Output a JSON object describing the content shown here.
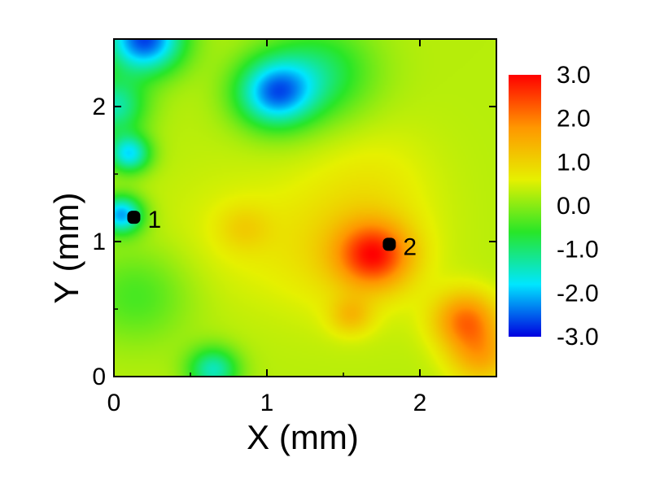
{
  "chart_data": {
    "type": "heatmap",
    "title": "",
    "xlabel": "X (mm)",
    "ylabel": "Y (mm)",
    "xlim": [
      0,
      2.5
    ],
    "ylim": [
      0,
      2.5
    ],
    "x_ticks": [
      0,
      1,
      2
    ],
    "y_ticks": [
      0,
      1,
      2
    ],
    "x_tick_labels": [
      "0",
      "1",
      "2"
    ],
    "y_tick_labels": [
      "0",
      "1",
      "2"
    ],
    "grid": false,
    "colorbar": {
      "range": [
        -3.0,
        3.0
      ],
      "ticks": [
        3.0,
        2.0,
        1.0,
        0.0,
        -1.0,
        -2.0,
        -3.0
      ],
      "tick_labels": [
        "3.0",
        "2.0",
        "1.0",
        "0.0",
        "-1.0",
        "-2.0",
        "-3.0"
      ],
      "colormap": "rainbow (blue-cyan-green-yellow-red)",
      "colors": [
        "#0000e0",
        "#00e6ff",
        "#28e628",
        "#e6f000",
        "#ff9600",
        "#ff0000"
      ]
    },
    "background_value": 0.3,
    "features": [
      {
        "x": 0.2,
        "y": 2.5,
        "value": -3.0,
        "sigma": 0.18
      },
      {
        "x": 1.05,
        "y": 2.1,
        "value": -2.4,
        "sigma": 0.18
      },
      {
        "x": 1.35,
        "y": 2.25,
        "value": -1.0,
        "sigma": 0.25
      },
      {
        "x": 0.1,
        "y": 1.65,
        "value": -2.0,
        "sigma": 0.1
      },
      {
        "x": 0.05,
        "y": 1.2,
        "value": -2.4,
        "sigma": 0.1
      },
      {
        "x": 0.0,
        "y": 2.0,
        "value": -1.5,
        "sigma": 0.15
      },
      {
        "x": 0.65,
        "y": 0.05,
        "value": -1.6,
        "sigma": 0.12
      },
      {
        "x": 0.15,
        "y": 0.6,
        "value": -0.5,
        "sigma": 0.25
      },
      {
        "x": 1.7,
        "y": 0.9,
        "value": 2.6,
        "sigma": 0.17
      },
      {
        "x": 1.55,
        "y": 0.95,
        "value": 1.0,
        "sigma": 0.35
      },
      {
        "x": 2.3,
        "y": 0.42,
        "value": 2.2,
        "sigma": 0.15
      },
      {
        "x": 2.4,
        "y": 0.15,
        "value": 1.6,
        "sigma": 0.15
      },
      {
        "x": 1.55,
        "y": 0.45,
        "value": 1.2,
        "sigma": 0.1
      },
      {
        "x": 0.8,
        "y": 1.05,
        "value": 0.6,
        "sigma": 0.35
      },
      {
        "x": 0.85,
        "y": 1.1,
        "value": 0.8,
        "sigma": 0.12
      },
      {
        "x": 1.7,
        "y": 1.5,
        "value": 0.6,
        "sigma": 0.3
      }
    ],
    "markers": [
      {
        "x": 0.13,
        "y": 1.18,
        "label": "1"
      },
      {
        "x": 1.8,
        "y": 0.98,
        "label": "2"
      }
    ]
  }
}
